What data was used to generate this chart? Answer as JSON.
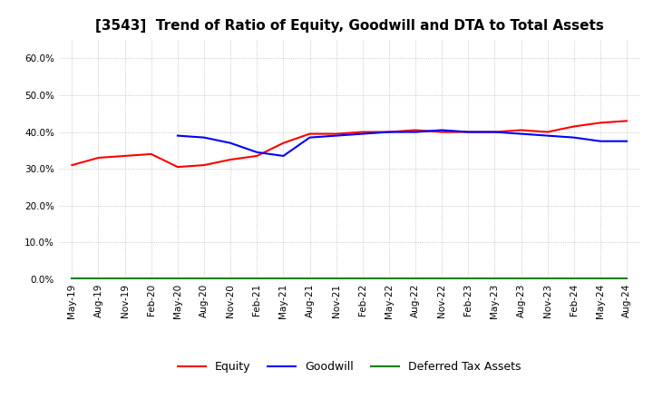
{
  "title": "[3543]  Trend of Ratio of Equity, Goodwill and DTA to Total Assets",
  "ylim": [
    0.0,
    0.65
  ],
  "yticks": [
    0.0,
    0.1,
    0.2,
    0.3,
    0.4,
    0.5,
    0.6
  ],
  "background_color": "#ffffff",
  "grid_color": "#aaaaaa",
  "equity_color": "#ff0000",
  "goodwill_color": "#0000ff",
  "dta_color": "#008000",
  "equity": [
    0.31,
    0.33,
    0.335,
    0.34,
    0.305,
    0.31,
    0.325,
    0.335,
    0.37,
    0.395,
    0.395,
    0.4,
    0.4,
    0.405,
    0.4,
    0.4,
    0.4,
    0.405,
    0.4,
    0.415,
    0.425,
    0.43
  ],
  "goodwill": [
    null,
    null,
    null,
    null,
    0.39,
    0.385,
    0.37,
    0.345,
    0.335,
    0.385,
    0.39,
    0.395,
    0.4,
    0.4,
    0.405,
    0.4,
    0.4,
    0.395,
    0.39,
    0.385,
    0.375,
    0.375
  ],
  "dta": [
    0.003,
    0.003,
    0.003,
    0.003,
    0.003,
    0.003,
    0.003,
    0.003,
    0.003,
    0.003,
    0.003,
    0.003,
    0.003,
    0.003,
    0.003,
    0.003,
    0.003,
    0.003,
    0.003,
    0.003,
    0.003,
    0.003
  ],
  "xtick_labels": [
    "May-19",
    "Aug-19",
    "Nov-19",
    "Feb-20",
    "May-20",
    "Aug-20",
    "Nov-20",
    "Feb-21",
    "May-21",
    "Aug-21",
    "Nov-21",
    "Feb-22",
    "May-22",
    "Aug-22",
    "Nov-22",
    "Feb-23",
    "May-23",
    "Aug-23",
    "Nov-23",
    "Feb-24",
    "May-24",
    "Aug-24"
  ],
  "legend_labels": [
    "Equity",
    "Goodwill",
    "Deferred Tax Assets"
  ],
  "title_fontsize": 11,
  "tick_fontsize": 7.5,
  "legend_fontsize": 9
}
